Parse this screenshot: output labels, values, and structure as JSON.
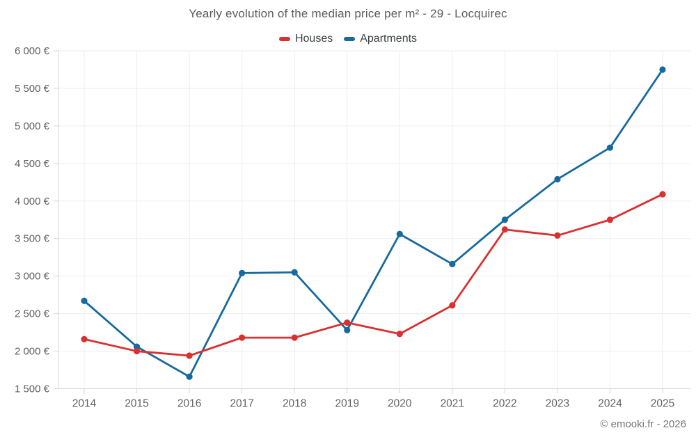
{
  "title": "Yearly evolution of the median price per m² - 29 - Locquirec",
  "footer": "© emooki.fr - 2026",
  "colors": {
    "houses": "#d93030",
    "apartments": "#17699f",
    "grid": "#ededed",
    "axis": "#d6d6d6",
    "tick_text": "#616161",
    "title_text": "#5c5c5c",
    "legend_text": "#3c4043",
    "footer_text": "#757575"
  },
  "chart_data": {
    "type": "line",
    "title": "Yearly evolution of the median price per m² - 29 - Locquirec",
    "categories": [
      "2014",
      "2015",
      "2016",
      "2017",
      "2018",
      "2019",
      "2020",
      "2021",
      "2022",
      "2023",
      "2024",
      "2025"
    ],
    "series": [
      {
        "name": "Houses",
        "color": "#d93030",
        "values": [
          2160,
          2000,
          1940,
          2180,
          2180,
          2380,
          2230,
          2610,
          3620,
          3540,
          3750,
          4090
        ]
      },
      {
        "name": "Apartments",
        "color": "#17699f",
        "values": [
          2670,
          2060,
          1660,
          3040,
          3050,
          2280,
          3560,
          3160,
          3750,
          4290,
          4710,
          5750
        ]
      }
    ],
    "xlabel": "",
    "ylabel": "",
    "ylim": [
      1500,
      6000
    ],
    "ytick_step": 500,
    "ytick_suffix": " €",
    "grid": true,
    "legend_position": "top",
    "marker": "circle"
  }
}
